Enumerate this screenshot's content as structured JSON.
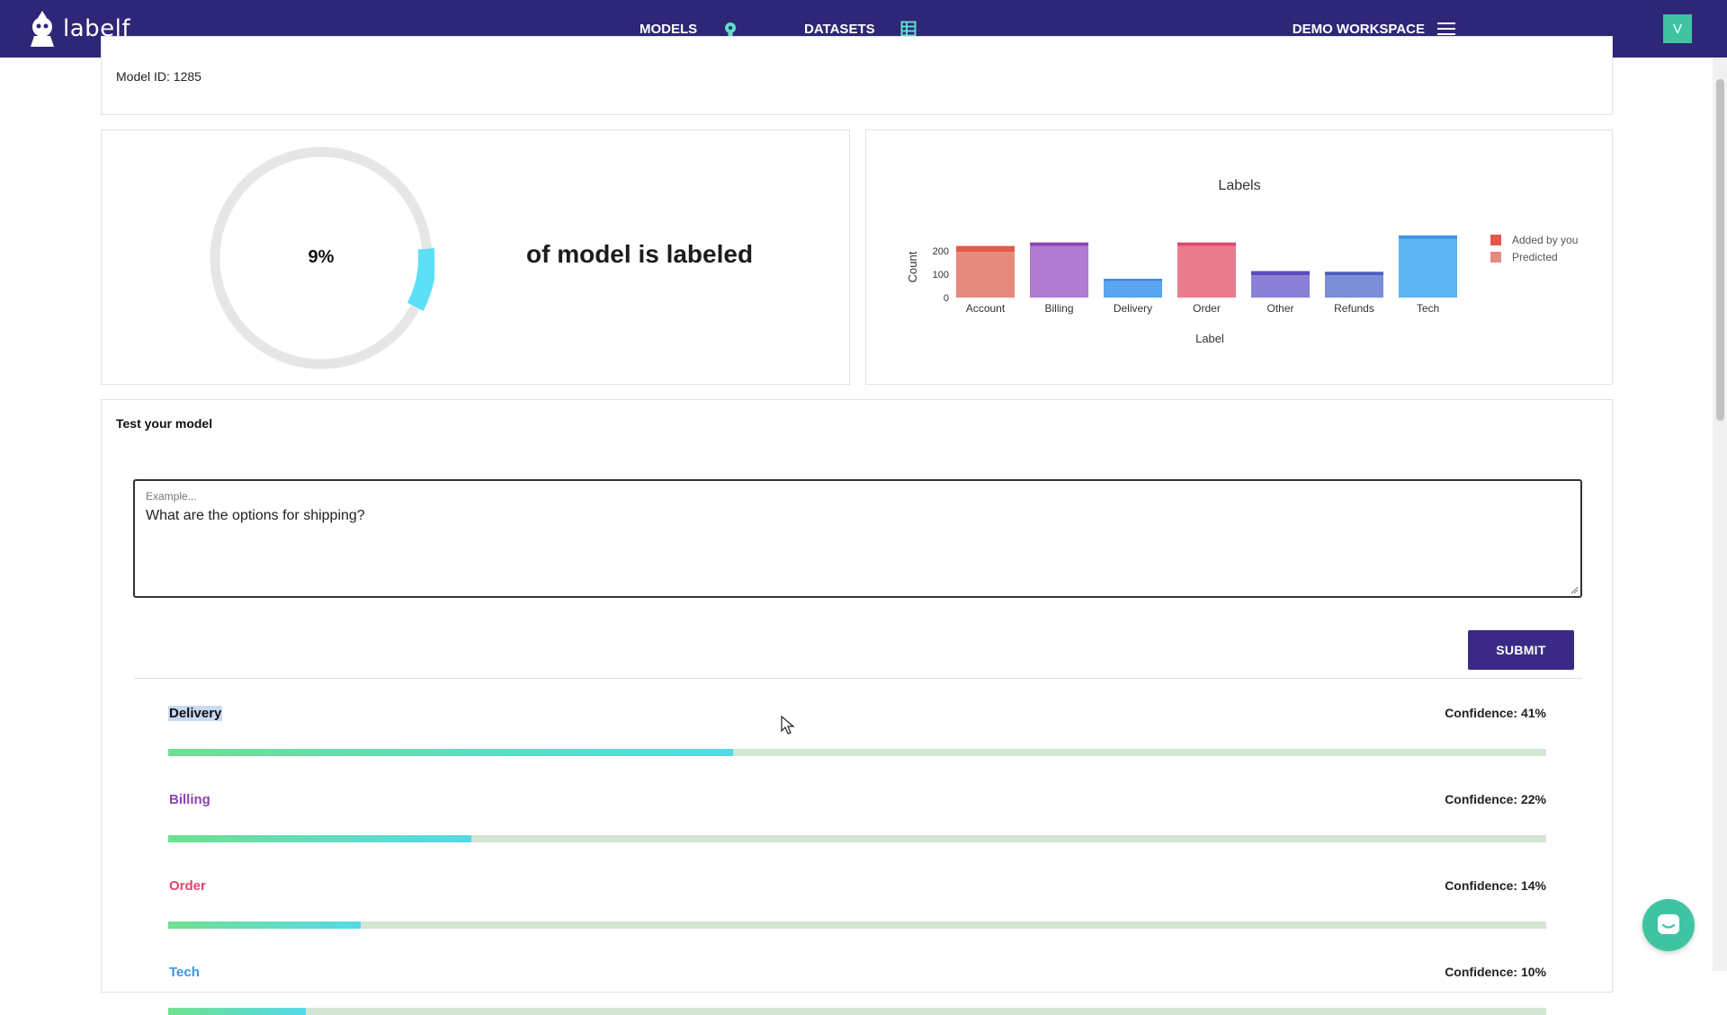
{
  "nav": {
    "logo_text": "labelf",
    "models_label": "MODELS",
    "datasets_label": "DATASETS",
    "workspace_label": "DEMO WORKSPACE",
    "avatar_letter": "V"
  },
  "model": {
    "id_text": "Model ID: 1285"
  },
  "progress": {
    "percent_text": "9%",
    "fraction": 0.09,
    "caption": "of model is labeled"
  },
  "chart_data": {
    "type": "bar",
    "title": "Labels",
    "xlabel": "Label",
    "ylabel": "Count",
    "ylim": [
      0,
      230
    ],
    "yticks": [
      0,
      100,
      200
    ],
    "categories": [
      "Account",
      "Billing",
      "Delivery",
      "Order",
      "Other",
      "Refunds",
      "Tech"
    ],
    "series": [
      {
        "name": "Added by you",
        "values": [
          25,
          15,
          10,
          15,
          18,
          15,
          15
        ]
      },
      {
        "name": "Predicted",
        "values": [
          195,
          220,
          70,
          220,
          95,
          95,
          250
        ]
      }
    ],
    "bar_colors": [
      "#e58a7e",
      "#b07bd0",
      "#5aa4f0",
      "#ea7b8e",
      "#8a80d6",
      "#7a8ed8",
      "#5bb5f2"
    ],
    "top_colors": [
      "#e2594a",
      "#8a45b8",
      "#3b84e6",
      "#de4a6c",
      "#5a4cbd",
      "#4a5cbe",
      "#3a95e6"
    ],
    "legend_position": "right",
    "legend_colors": [
      "#e2594a",
      "#e58a7e"
    ]
  },
  "test": {
    "title": "Test your model",
    "input_label": "Example...",
    "input_value": "What are the options for shipping?",
    "submit_label": "SUBMIT"
  },
  "results": [
    {
      "label": "Delivery",
      "confidence_text": "Confidence: 41%",
      "confidence": 0.41,
      "color": "#111111"
    },
    {
      "label": "Billing",
      "confidence_text": "Confidence: 22%",
      "confidence": 0.22,
      "color": "#8e44ad"
    },
    {
      "label": "Order",
      "confidence_text": "Confidence: 14%",
      "confidence": 0.14,
      "color": "#e0456a"
    },
    {
      "label": "Tech",
      "confidence_text": "Confidence: 10%",
      "confidence": 0.1,
      "color": "#3a95e6"
    }
  ],
  "colors": {
    "nav_bg": "#2e2677",
    "accent": "#3a2a85",
    "donut_fill": "#5be0f5",
    "donut_track": "#e6e6e6",
    "chat": "#3fc4a2"
  },
  "icons": [
    "logo-icon",
    "models-icon",
    "datasets-icon",
    "menu-icon",
    "chat-icon",
    "cursor-icon"
  ]
}
